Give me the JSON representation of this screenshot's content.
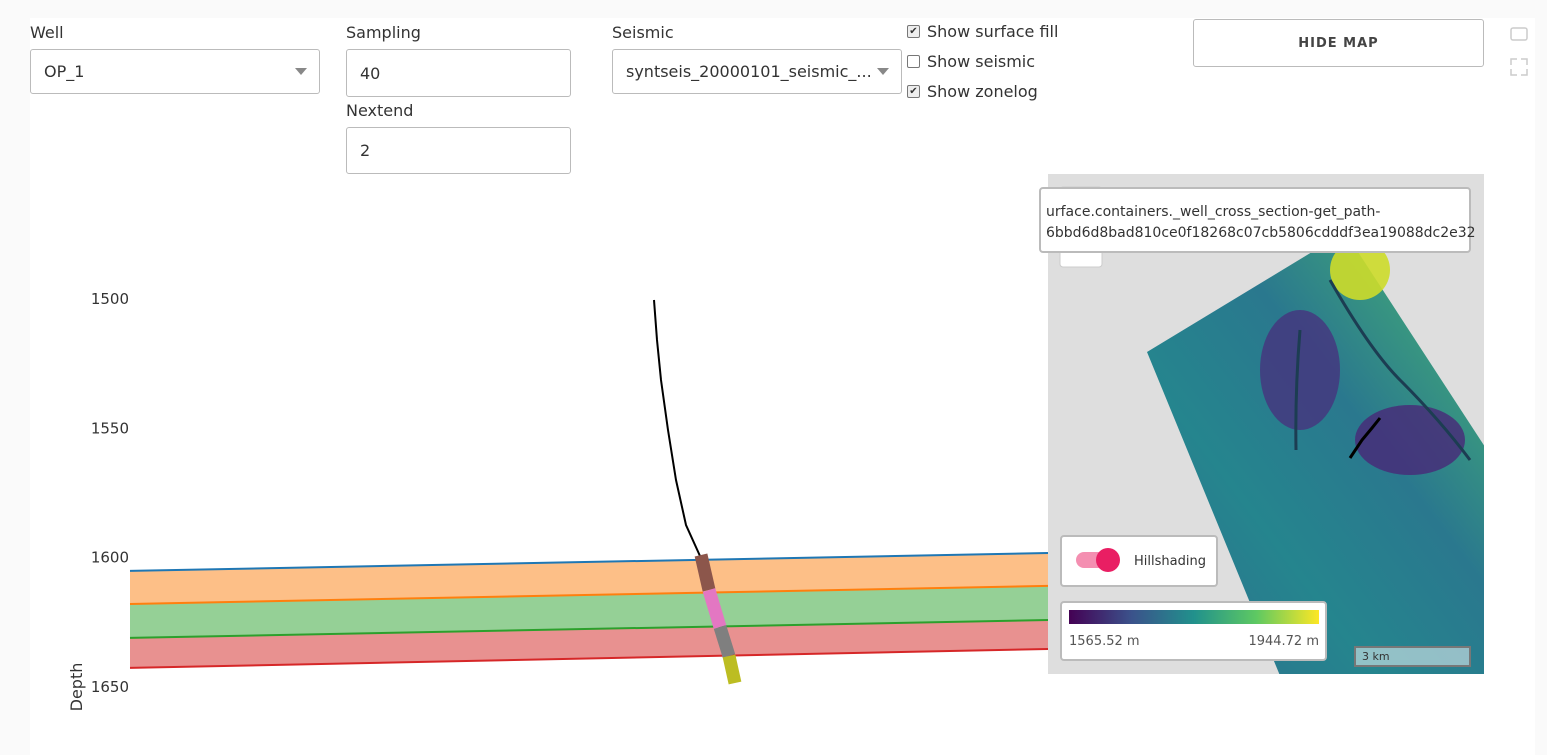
{
  "controls": {
    "well": {
      "label": "Well",
      "value": "OP_1"
    },
    "sampling": {
      "label": "Sampling",
      "value": "40"
    },
    "nextend": {
      "label": "Nextend",
      "value": "2"
    },
    "seismic": {
      "label": "Seismic",
      "value": "syntseis_20000101_seismic_..."
    },
    "checkboxes": [
      {
        "label": "Show surface fill",
        "checked": true
      },
      {
        "label": "Show seismic",
        "checked": false
      },
      {
        "label": "Show zonelog",
        "checked": true
      }
    ],
    "button": "HIDE MAP"
  },
  "plot": {
    "y_label": "Depth",
    "ylim": [
      1500,
      1650
    ],
    "yticks": [
      1500,
      1550,
      1600,
      1650
    ],
    "surfaces": [
      {
        "color": "#1f77b4",
        "values": [
          1605.5,
          1598.6
        ]
      },
      {
        "color": "#ff7f0e",
        "fill": "#fdbf87",
        "values": [
          1618.3,
          1611.3
        ]
      },
      {
        "color": "#2ca02c",
        "fill": "#95d096",
        "values": [
          1631.4,
          1624.5
        ]
      },
      {
        "color": "#d62728",
        "fill": "#e89190",
        "values": [
          1643.0,
          1635.7
        ]
      }
    ]
  },
  "map": {
    "tooltip": [
      "urface.containers._well_cross_section-get_path-",
      "6bbd6d8bad810ce0f18268c07cb5806cdddf3ea19088dc2e32"
    ],
    "toggle_label": "Hillshading",
    "colorbar_min": "1565.52 m",
    "colorbar_max": "1944.72 m",
    "scale": "3 km"
  }
}
